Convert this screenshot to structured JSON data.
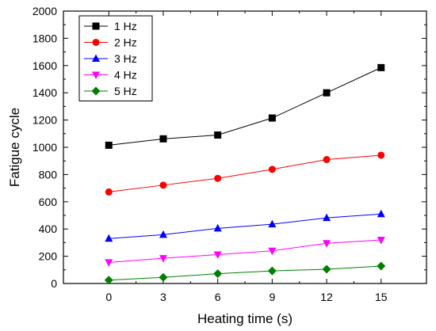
{
  "chart_data": {
    "type": "line",
    "xlabel": "Heating time (s)",
    "ylabel": "Fatigue cycle",
    "x": [
      0,
      3,
      6,
      9,
      12,
      15
    ],
    "xlim": [
      -2.5,
      17.5
    ],
    "ylim": [
      0,
      2000
    ],
    "xticks": [
      0,
      3,
      6,
      9,
      12,
      15
    ],
    "yticks": [
      0,
      200,
      400,
      600,
      800,
      1000,
      1200,
      1400,
      1600,
      1800,
      2000
    ],
    "grid": false,
    "legend_position": "top-left",
    "series": [
      {
        "name": "1 Hz",
        "color": "#000000",
        "marker": "square",
        "values": [
          1015,
          1062,
          1090,
          1215,
          1400,
          1585
        ]
      },
      {
        "name": "2 Hz",
        "color": "#ff0000",
        "marker": "circle",
        "values": [
          672,
          722,
          772,
          838,
          910,
          942
        ]
      },
      {
        "name": "3 Hz",
        "color": "#0000ff",
        "marker": "triangle-up",
        "values": [
          330,
          358,
          405,
          435,
          482,
          510
        ]
      },
      {
        "name": "4 Hz",
        "color": "#ff00ff",
        "marker": "triangle-down",
        "values": [
          155,
          185,
          212,
          240,
          295,
          320
        ]
      },
      {
        "name": "5 Hz",
        "color": "#008000",
        "marker": "diamond",
        "values": [
          25,
          45,
          72,
          92,
          105,
          128
        ]
      }
    ]
  }
}
